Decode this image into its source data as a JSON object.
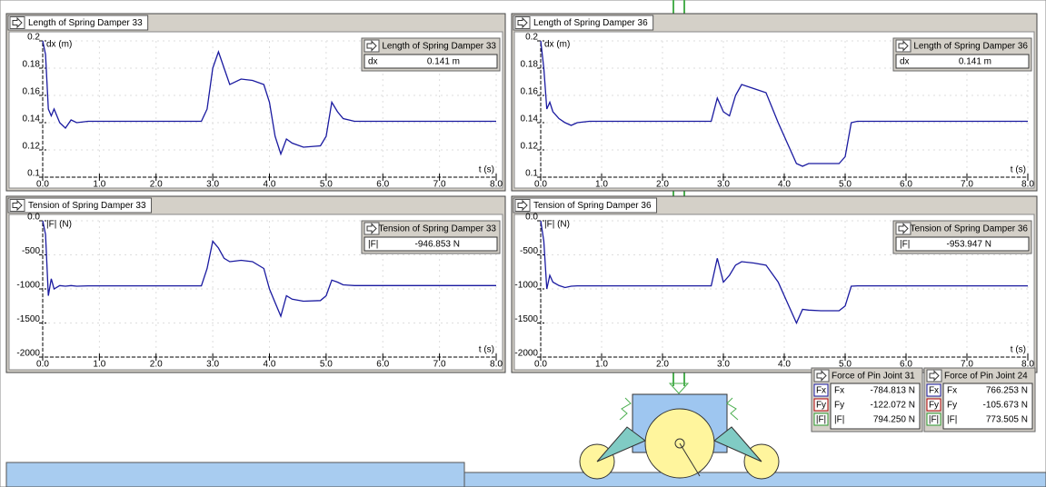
{
  "panels": [
    {
      "title": "Length of Spring Damper 33",
      "y_label": "dx (m)",
      "x_label": "t (s)",
      "meter": {
        "title": "Length of Spring Damper 33",
        "label": "dx",
        "value": "0.141 m"
      },
      "xlim": [
        0,
        8
      ],
      "xticks": [
        {
          "value": 0,
          "label": "0.0"
        },
        {
          "value": 1,
          "label": "1.0"
        },
        {
          "value": 2,
          "label": "2.0"
        },
        {
          "value": 3,
          "label": "3.0"
        },
        {
          "value": 4,
          "label": "4.0"
        },
        {
          "value": 5,
          "label": "5.0"
        },
        {
          "value": 6,
          "label": "6.0"
        },
        {
          "value": 7,
          "label": "7.0"
        },
        {
          "value": 8,
          "label": "8.0"
        }
      ],
      "ylim": [
        0.1,
        0.2
      ],
      "yticks": [
        0.1,
        0.12,
        0.14,
        0.16,
        0.18,
        0.2
      ],
      "x": [
        0,
        0.05,
        0.1,
        0.15,
        0.2,
        0.3,
        0.4,
        0.5,
        0.6,
        0.8,
        1.0,
        1.5,
        2.0,
        2.5,
        2.8,
        2.9,
        3.0,
        3.1,
        3.2,
        3.3,
        3.5,
        3.7,
        3.9,
        4.0,
        4.1,
        4.2,
        4.3,
        4.4,
        4.6,
        4.9,
        5.0,
        5.1,
        5.2,
        5.3,
        5.5,
        6,
        7,
        8
      ],
      "values": [
        0.2,
        0.19,
        0.15,
        0.145,
        0.15,
        0.14,
        0.136,
        0.142,
        0.14,
        0.141,
        0.141,
        0.141,
        0.141,
        0.141,
        0.141,
        0.15,
        0.18,
        0.192,
        0.18,
        0.168,
        0.172,
        0.171,
        0.168,
        0.155,
        0.13,
        0.117,
        0.128,
        0.125,
        0.122,
        0.123,
        0.13,
        0.155,
        0.148,
        0.143,
        0.141,
        0.141,
        0.141,
        0.141
      ]
    },
    {
      "title": "Length of Spring Damper 36",
      "y_label": "dx (m)",
      "x_label": "t (s)",
      "meter": {
        "title": "Length of Spring Damper 36",
        "label": "dx",
        "value": "0.141 m"
      },
      "xlim": [
        0,
        8
      ],
      "xticks": [
        {
          "value": 0,
          "label": "0.0"
        },
        {
          "value": 1,
          "label": "1.0"
        },
        {
          "value": 2,
          "label": "2.0"
        },
        {
          "value": 3,
          "label": "3.0"
        },
        {
          "value": 4,
          "label": "4.0"
        },
        {
          "value": 5,
          "label": "5.0"
        },
        {
          "value": 6,
          "label": "6.0"
        },
        {
          "value": 7,
          "label": "7.0"
        },
        {
          "value": 8,
          "label": "8.0"
        }
      ],
      "ylim": [
        0.1,
        0.2
      ],
      "yticks": [
        0.1,
        0.12,
        0.14,
        0.16,
        0.18,
        0.2
      ],
      "x": [
        0,
        0.05,
        0.1,
        0.15,
        0.2,
        0.3,
        0.4,
        0.5,
        0.6,
        0.8,
        1.0,
        1.5,
        2.0,
        2.5,
        2.8,
        2.9,
        3.0,
        3.1,
        3.2,
        3.3,
        3.5,
        3.7,
        3.9,
        4.0,
        4.1,
        4.2,
        4.3,
        4.4,
        4.6,
        4.9,
        5.0,
        5.1,
        5.2,
        5.3,
        5.5,
        6,
        7,
        8
      ],
      "values": [
        0.2,
        0.18,
        0.15,
        0.155,
        0.148,
        0.143,
        0.14,
        0.138,
        0.14,
        0.141,
        0.141,
        0.141,
        0.141,
        0.141,
        0.141,
        0.158,
        0.148,
        0.145,
        0.16,
        0.168,
        0.165,
        0.162,
        0.14,
        0.13,
        0.12,
        0.11,
        0.108,
        0.11,
        0.11,
        0.11,
        0.115,
        0.14,
        0.141,
        0.141,
        0.141,
        0.141,
        0.141,
        0.141
      ]
    },
    {
      "title": "Tension of Spring Damper 33",
      "y_label": "|F| (N)",
      "x_label": "t (s)",
      "meter": {
        "title": "Tension of Spring Damper 33",
        "label": "|F|",
        "value": "-946.853 N"
      },
      "xlim": [
        0,
        8
      ],
      "xticks": [
        {
          "value": 0,
          "label": "0.0"
        },
        {
          "value": 1,
          "label": "1.0"
        },
        {
          "value": 2,
          "label": "2.0"
        },
        {
          "value": 3,
          "label": "3.0"
        },
        {
          "value": 4,
          "label": "4.0"
        },
        {
          "value": 5,
          "label": "5.0"
        },
        {
          "value": 6,
          "label": "6.0"
        },
        {
          "value": 7,
          "label": "7.0"
        },
        {
          "value": 8,
          "label": "8.0"
        }
      ],
      "ylim": [
        -2000,
        0
      ],
      "yticks": [
        -2000,
        -1500,
        -1000,
        -500,
        {
          "value": 0,
          "label": "0.0"
        }
      ],
      "x": [
        0,
        0.05,
        0.1,
        0.15,
        0.2,
        0.3,
        0.4,
        0.5,
        0.6,
        0.8,
        1.0,
        1.5,
        2.0,
        2.5,
        2.8,
        2.9,
        3.0,
        3.1,
        3.2,
        3.3,
        3.5,
        3.7,
        3.9,
        4.0,
        4.1,
        4.2,
        4.3,
        4.4,
        4.6,
        4.9,
        5.0,
        5.1,
        5.2,
        5.3,
        5.5,
        6,
        7,
        8
      ],
      "values": [
        0,
        -200,
        -1100,
        -850,
        -1000,
        -950,
        -960,
        -950,
        -960,
        -955,
        -955,
        -955,
        -955,
        -955,
        -955,
        -700,
        -300,
        -400,
        -550,
        -600,
        -580,
        -600,
        -700,
        -1000,
        -1200,
        -1400,
        -1100,
        -1150,
        -1180,
        -1170,
        -1100,
        -870,
        -900,
        -940,
        -950,
        -950,
        -950,
        -950
      ]
    },
    {
      "title": "Tension of Spring Damper 36",
      "y_label": "|F| (N)",
      "x_label": "t (s)",
      "meter": {
        "title": "Tension of Spring Damper 36",
        "label": "|F|",
        "value": "-953.947 N"
      },
      "xlim": [
        0,
        8
      ],
      "xticks": [
        {
          "value": 0,
          "label": "0.0"
        },
        {
          "value": 1,
          "label": "1.0"
        },
        {
          "value": 2,
          "label": "2.0"
        },
        {
          "value": 3,
          "label": "3.0"
        },
        {
          "value": 4,
          "label": "4.0"
        },
        {
          "value": 5,
          "label": "5.0"
        },
        {
          "value": 6,
          "label": "6.0"
        },
        {
          "value": 7,
          "label": "7.0"
        },
        {
          "value": 8,
          "label": "8.0"
        }
      ],
      "ylim": [
        -2000,
        0
      ],
      "yticks": [
        -2000,
        -1500,
        -1000,
        -500,
        {
          "value": 0,
          "label": "0.0"
        }
      ],
      "x": [
        0,
        0.05,
        0.1,
        0.15,
        0.2,
        0.3,
        0.4,
        0.5,
        0.6,
        0.8,
        1.0,
        1.5,
        2.0,
        2.5,
        2.8,
        2.9,
        3.0,
        3.1,
        3.2,
        3.3,
        3.5,
        3.7,
        3.9,
        4.0,
        4.1,
        4.2,
        4.3,
        4.4,
        4.6,
        4.9,
        5.0,
        5.1,
        5.2,
        5.3,
        5.5,
        6,
        7,
        8
      ],
      "values": [
        0,
        -300,
        -1000,
        -800,
        -900,
        -950,
        -980,
        -960,
        -955,
        -955,
        -955,
        -955,
        -955,
        -955,
        -955,
        -550,
        -900,
        -800,
        -650,
        -600,
        -620,
        -650,
        -900,
        -1100,
        -1300,
        -1500,
        -1300,
        -1310,
        -1320,
        -1320,
        -1250,
        -960,
        -955,
        -955,
        -955,
        -955,
        -955,
        -955
      ]
    }
  ],
  "force_meters": [
    {
      "title": "Force of Pin Joint 31",
      "rows": [
        {
          "button": "Fx",
          "label": "Fx",
          "value": "-784.813 N"
        },
        {
          "button": "Fy",
          "label": "Fy",
          "value": "-122.072 N"
        },
        {
          "button": "|F|",
          "label": "|F|",
          "value": "794.250 N"
        }
      ]
    },
    {
      "title": "Force of Pin Joint 24",
      "rows": [
        {
          "button": "Fx",
          "label": "Fx",
          "value": "766.253 N"
        },
        {
          "button": "Fy",
          "label": "Fy",
          "value": "-105.673 N"
        },
        {
          "button": "|F|",
          "label": "|F|",
          "value": "773.505 N"
        }
      ]
    }
  ]
}
